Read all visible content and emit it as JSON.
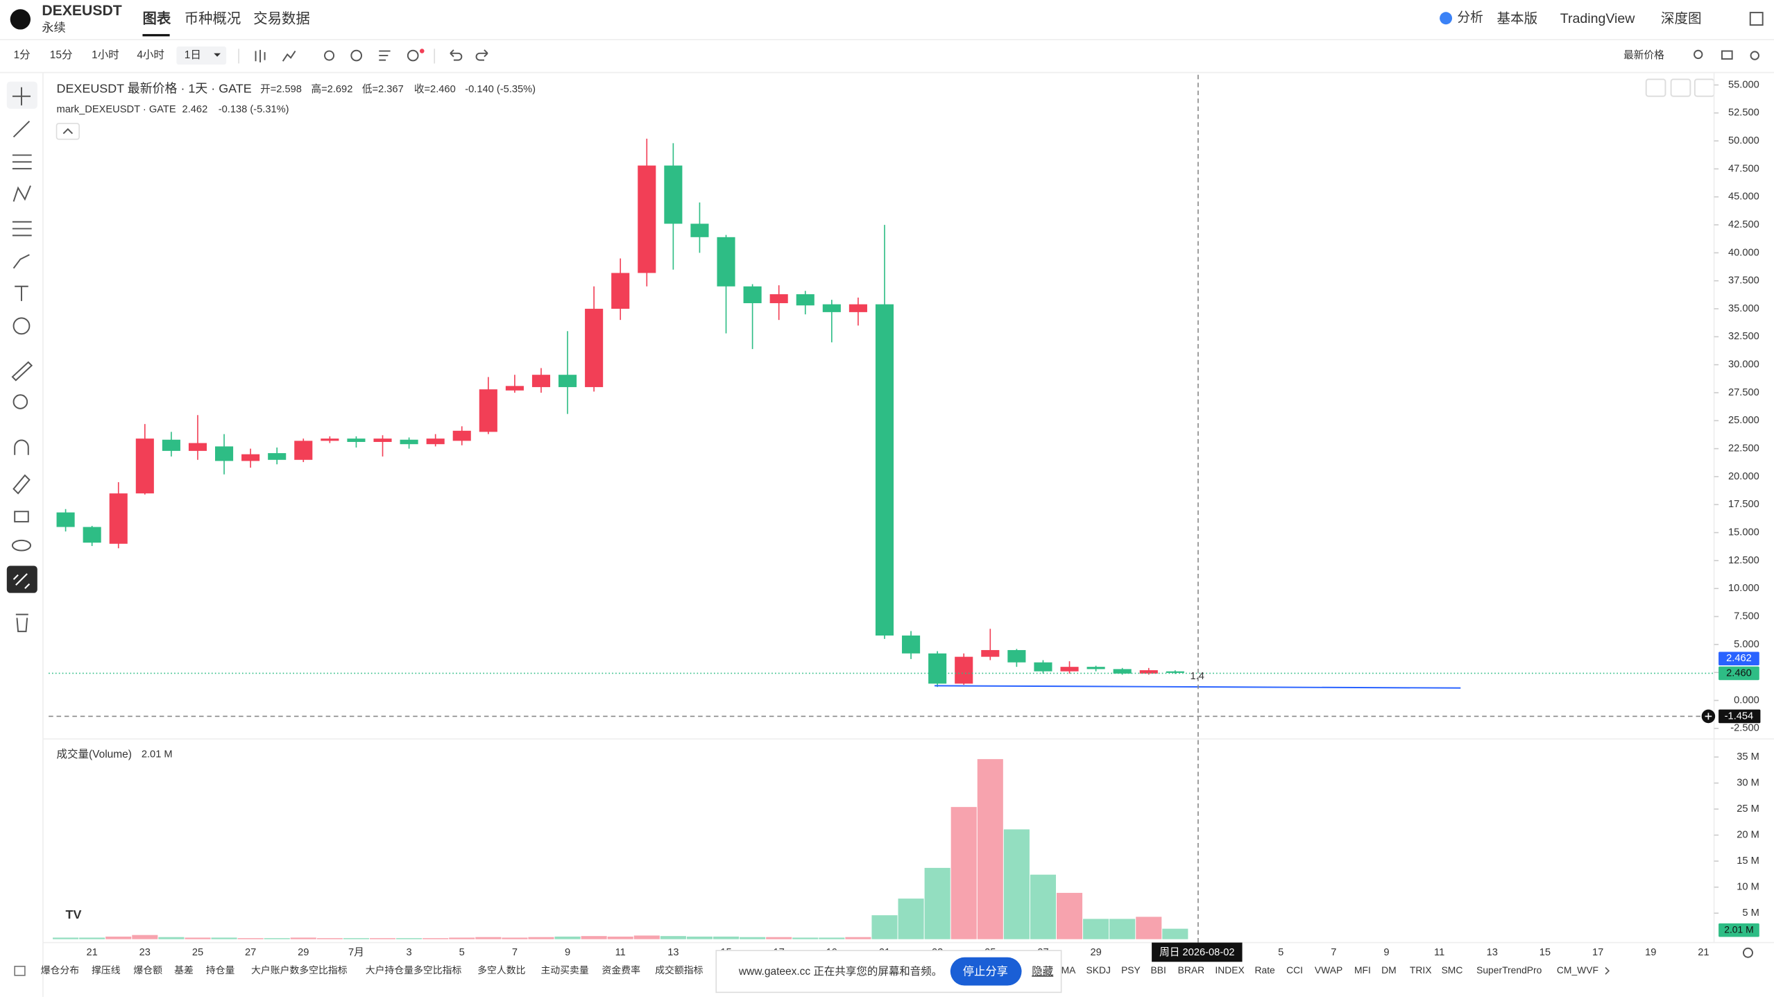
{
  "header": {
    "symbol": "DEXEUSDT",
    "contract": "永续",
    "tabs": [
      "图表",
      "币种概况",
      "交易数据"
    ],
    "right": [
      "分析",
      "基本版",
      "TradingView",
      "深度图"
    ]
  },
  "toolbar": {
    "intervals": [
      "1分",
      "15分",
      "1小时",
      "4小时",
      "1日"
    ],
    "price_type": "最新价格"
  },
  "legend": {
    "main": "DEXEUSDT 最新价格 · 1天 · GATE",
    "open": "开=2.598",
    "high": "高=2.692",
    "low": "低=2.367",
    "close": "收=2.460",
    "change": "-0.140 (-5.35%)",
    "mark": "mark_DEXEUSDT · GATE",
    "mark_price": "2.462",
    "mark_change": "-0.138 (-5.31%)"
  },
  "overlays": {
    "mark_price": "2.462",
    "last_price": "2.460",
    "crosshair_price": "-1.454",
    "crosshair_date": "周日 2026-08-02",
    "drawing_label": "1.4"
  },
  "indicators": [
    "爆仓分布",
    "撑压线",
    "爆仓额",
    "基差",
    "持仓量",
    "大户账户数多空比指标",
    "大户持仓量多空比指标",
    "多空人数比",
    "主动买卖量",
    "资金费率",
    "成交额指标",
    "MA",
    "SKDJ",
    "PSY",
    "BBI",
    "BRAR",
    "INDEX",
    "Rate",
    "CCI",
    "VWAP",
    "MFI",
    "DM",
    "TRIX",
    "SMC",
    "SuperTrendPro",
    "CM_WVF"
  ],
  "popup": {
    "text": "www.gateex.cc 正在共享您的屏幕和音频。",
    "button": "停止分享",
    "hide": "隐藏"
  },
  "chart_data": [
    {
      "type": "candlestick",
      "up_color": "#f23f56",
      "down_color": "#2ebd85",
      "categories": [
        null,
        "21",
        null,
        "23",
        null,
        "25",
        null,
        "27",
        null,
        "29",
        null,
        "7月",
        null,
        "3",
        null,
        "5",
        null,
        "7",
        null,
        "9",
        null,
        "11",
        null,
        "13",
        null,
        "15",
        null,
        "17",
        null,
        "19",
        null,
        "21",
        null,
        "23",
        null,
        "25",
        null,
        "27",
        null,
        "29",
        null,
        null,
        null,
        null,
        null,
        null,
        "5",
        null,
        "7",
        null,
        "9",
        null,
        "11",
        null,
        "13",
        null,
        "15",
        null,
        "17",
        null,
        "19",
        null,
        "21"
      ],
      "open": [
        16.8,
        15.5,
        14.0,
        18.5,
        23.3,
        22.3,
        22.7,
        21.4,
        22.1,
        21.5,
        23.2,
        23.4,
        23.1,
        23.3,
        22.9,
        23.2,
        24.0,
        27.7,
        28.0,
        29.1,
        28.0,
        35.0,
        38.2,
        47.8,
        42.6,
        41.4,
        37.0,
        35.5,
        36.3,
        35.4,
        34.7,
        35.4,
        5.8,
        4.2,
        1.5,
        3.9,
        4.5,
        3.4,
        2.6,
        3.0,
        2.8,
        2.4,
        2.598,
        null,
        null,
        null,
        null,
        null,
        null,
        null,
        null,
        null,
        null,
        null,
        null,
        null,
        null,
        null,
        null,
        null,
        null,
        null,
        null
      ],
      "high": [
        17.1,
        15.6,
        19.5,
        24.7,
        24.0,
        25.5,
        23.8,
        22.5,
        22.6,
        23.4,
        23.6,
        23.6,
        23.7,
        23.5,
        23.8,
        24.5,
        28.9,
        29.1,
        29.7,
        33.0,
        37.0,
        39.5,
        50.2,
        49.8,
        44.5,
        41.6,
        37.2,
        37.1,
        36.6,
        35.8,
        36.0,
        42.5,
        6.2,
        4.4,
        4.2,
        6.4,
        4.6,
        3.6,
        3.5,
        3.1,
        2.9,
        2.9,
        2.692,
        null,
        null,
        null,
        null,
        null,
        null,
        null,
        null,
        null,
        null,
        null,
        null,
        null,
        null,
        null,
        null,
        null,
        null,
        null,
        null
      ],
      "low": [
        15.1,
        13.8,
        13.6,
        18.4,
        21.8,
        21.5,
        20.2,
        20.8,
        21.1,
        21.3,
        23.0,
        22.6,
        21.8,
        22.5,
        22.7,
        22.8,
        23.8,
        27.5,
        27.5,
        25.6,
        27.6,
        34.0,
        37.0,
        38.5,
        40.0,
        32.8,
        31.4,
        34.0,
        34.5,
        32.0,
        33.5,
        5.5,
        3.7,
        1.2,
        1.4,
        3.6,
        3.0,
        2.4,
        2.4,
        2.6,
        2.3,
        2.3,
        2.367,
        null,
        null,
        null,
        null,
        null,
        null,
        null,
        null,
        null,
        null,
        null,
        null,
        null,
        null,
        null,
        null,
        null,
        null,
        null,
        null
      ],
      "close": [
        15.5,
        14.1,
        18.5,
        23.4,
        22.3,
        23.0,
        21.4,
        22.0,
        21.5,
        23.2,
        23.4,
        23.1,
        23.4,
        22.9,
        23.4,
        24.1,
        27.8,
        28.1,
        29.1,
        28.0,
        35.0,
        38.2,
        47.8,
        42.6,
        41.4,
        37.0,
        35.5,
        36.3,
        35.3,
        34.7,
        35.4,
        5.8,
        4.2,
        1.5,
        3.9,
        4.5,
        3.4,
        2.6,
        3.0,
        2.8,
        2.4,
        2.7,
        2.46,
        null,
        null,
        null,
        null,
        null,
        null,
        null,
        null,
        null,
        null,
        null,
        null,
        null,
        null,
        null,
        null,
        null,
        null,
        null,
        null
      ],
      "ylim": [
        -2.5,
        55
      ],
      "yticks": [
        {
          "value": -2.5,
          "label": "-2.500"
        },
        {
          "value": 0,
          "label": "0.000"
        },
        {
          "value": 2.5,
          "label": "2.500"
        },
        {
          "value": 5,
          "label": "5.000"
        },
        {
          "value": 7.5,
          "label": "7.500"
        },
        {
          "value": 10,
          "label": "10.000"
        },
        {
          "value": 12.5,
          "label": "12.500"
        },
        {
          "value": 15,
          "label": "15.000"
        },
        {
          "value": 17.5,
          "label": "17.500"
        },
        {
          "value": 20,
          "label": "20.000"
        },
        {
          "value": 22.5,
          "label": "22.500"
        },
        {
          "value": 25,
          "label": "25.000"
        },
        {
          "value": 27.5,
          "label": "27.500"
        },
        {
          "value": 30,
          "label": "30.000"
        },
        {
          "value": 32.5,
          "label": "32.500"
        },
        {
          "value": 35,
          "label": "35.000"
        },
        {
          "value": 37.5,
          "label": "37.500"
        },
        {
          "value": 40,
          "label": "40.000"
        },
        {
          "value": 42.5,
          "label": "42.500"
        },
        {
          "value": 45,
          "label": "45.000"
        },
        {
          "value": 47.5,
          "label": "47.500"
        },
        {
          "value": 50,
          "label": "50.000"
        },
        {
          "value": 52.5,
          "label": "52.500"
        },
        {
          "value": 55,
          "label": "55.000"
        }
      ]
    },
    {
      "type": "bar",
      "title": "成交量(Volume)",
      "value_label": "2.01 M",
      "up_color": "#f7a3ae",
      "down_color": "#93dec0",
      "values": [
        0.3,
        0.3,
        0.5,
        0.8,
        0.4,
        0.3,
        0.3,
        0.2,
        0.2,
        0.3,
        0.2,
        0.2,
        0.2,
        0.2,
        0.2,
        0.3,
        0.4,
        0.3,
        0.4,
        0.5,
        0.6,
        0.5,
        0.7,
        0.6,
        0.5,
        0.5,
        0.4,
        0.4,
        0.3,
        0.3,
        0.4,
        4.6,
        7.8,
        13.7,
        25.4,
        34.6,
        21.1,
        12.4,
        8.9,
        3.9,
        3.9,
        4.3,
        2.01,
        null,
        null,
        null,
        null,
        null,
        null,
        null,
        null,
        null,
        null,
        null,
        null,
        null,
        null,
        null,
        null,
        null,
        null,
        null,
        null
      ],
      "ylim": [
        0,
        35
      ],
      "yticks": [
        {
          "value": 5,
          "label": "5 M"
        },
        {
          "value": 10,
          "label": "10 M"
        },
        {
          "value": 15,
          "label": "15 M"
        },
        {
          "value": 20,
          "label": "20 M"
        },
        {
          "value": 25,
          "label": "25 M"
        },
        {
          "value": 30,
          "label": "30 M"
        },
        {
          "value": 35,
          "label": "35 M"
        }
      ]
    }
  ]
}
